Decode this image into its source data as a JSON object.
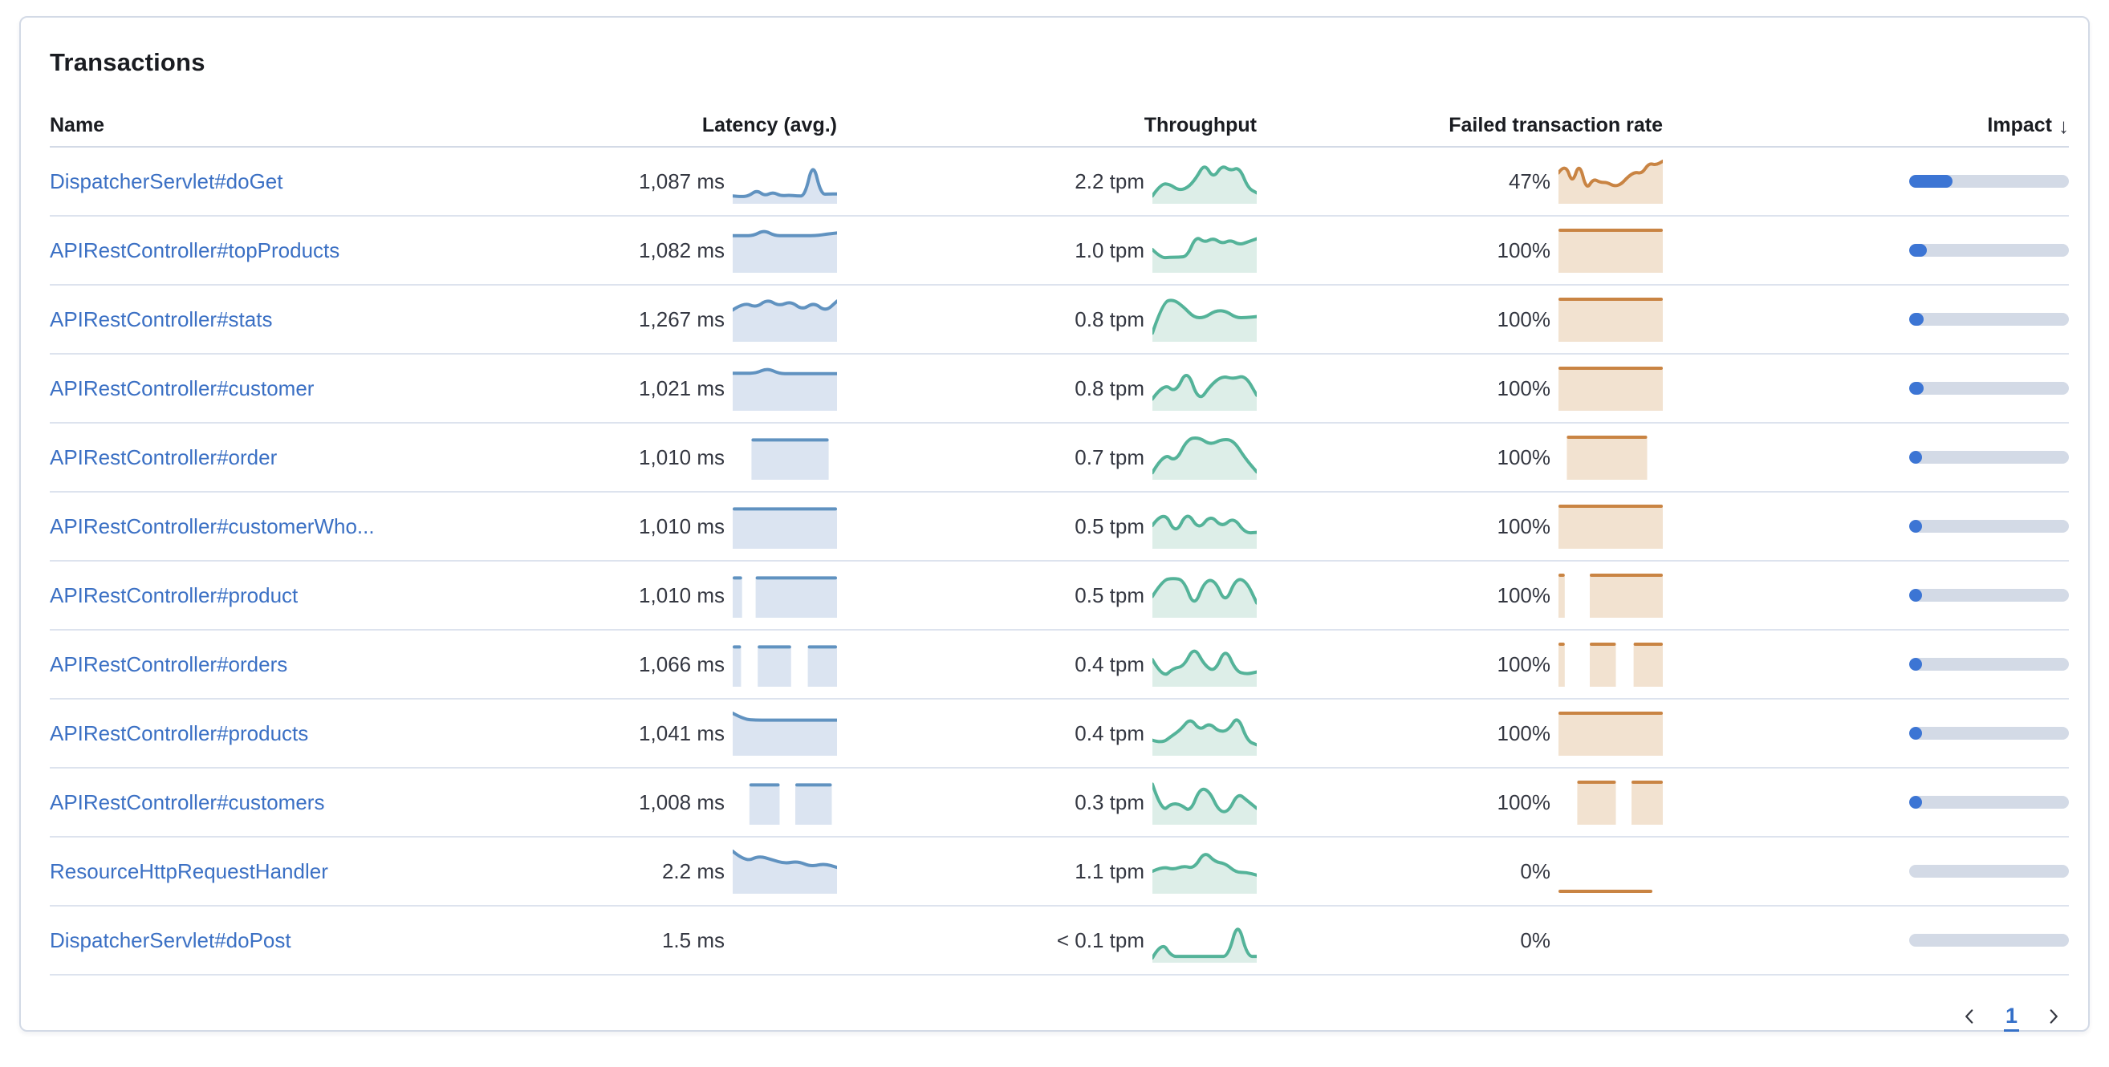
{
  "panel": {
    "title": "Transactions"
  },
  "table": {
    "columns": {
      "name": "Name",
      "latency": "Latency (avg.)",
      "throughput": "Throughput",
      "failed_rate": "Failed transaction rate",
      "impact": "Impact"
    },
    "sort": {
      "column": "impact",
      "direction": "descending",
      "icon": "↓"
    },
    "rows": [
      {
        "name": "DispatcherServlet#doGet",
        "latency": "1,087 ms",
        "throughput": "2.2 tpm",
        "failed_rate": "47%",
        "impact_pct": 27,
        "latency_spark": {
          "kind": "area",
          "points": [
            0.1,
            0.08,
            0.1,
            0.25,
            0.1,
            0.2,
            0.1,
            0.12,
            0.1,
            0.1,
            1.0,
            0.14,
            0.15,
            0.15
          ]
        },
        "throughput_spark": {
          "kind": "area",
          "points": [
            0.1,
            0.42,
            0.4,
            0.25,
            0.3,
            0.55,
            0.95,
            0.55,
            0.9,
            0.75,
            0.85,
            0.3,
            0.18
          ]
        },
        "failed_spark": {
          "kind": "area",
          "points": [
            0.7,
            0.95,
            0.4,
            0.98,
            0.25,
            0.55,
            0.45,
            0.45,
            0.35,
            0.4,
            0.6,
            0.72,
            0.68,
            0.95,
            0.9,
            1.0
          ]
        }
      },
      {
        "name": "APIRestController#topProducts",
        "latency": "1,082 ms",
        "throughput": "1.0 tpm",
        "failed_rate": "100%",
        "impact_pct": 11,
        "latency_spark": {
          "kind": "area",
          "points": [
            0.86,
            0.86,
            0.86,
            1.0,
            0.86,
            0.86,
            0.86,
            0.86,
            0.86,
            0.9,
            0.93
          ]
        },
        "throughput_spark": {
          "kind": "area",
          "points": [
            0.5,
            0.28,
            0.3,
            0.3,
            0.32,
            0.85,
            0.68,
            0.8,
            0.65,
            0.75,
            0.62,
            0.7,
            0.78
          ]
        },
        "failed_spark": {
          "kind": "blocks",
          "top": 1.0,
          "blocks": [
            [
              0,
              1
            ]
          ]
        }
      },
      {
        "name": "APIRestController#stats",
        "latency": "1,267 ms",
        "throughput": "0.8 tpm",
        "failed_rate": "100%",
        "impact_pct": 9,
        "latency_spark": {
          "kind": "area",
          "points": [
            0.72,
            0.92,
            0.78,
            1.0,
            0.82,
            0.95,
            0.72,
            0.92,
            0.68,
            0.95
          ]
        },
        "throughput_spark": {
          "kind": "area",
          "points": [
            0.12,
            0.92,
            1.0,
            0.8,
            0.52,
            0.52,
            0.7,
            0.7,
            0.52,
            0.52,
            0.55
          ]
        },
        "failed_spark": {
          "kind": "blocks",
          "top": 1.0,
          "blocks": [
            [
              0,
              1
            ]
          ]
        }
      },
      {
        "name": "APIRestController#customer",
        "latency": "1,021 ms",
        "throughput": "0.8 tpm",
        "failed_rate": "100%",
        "impact_pct": 9,
        "latency_spark": {
          "kind": "area",
          "points": [
            0.87,
            0.87,
            0.87,
            1.0,
            0.86,
            0.86,
            0.86,
            0.86,
            0.86,
            0.86
          ]
        },
        "throughput_spark": {
          "kind": "area",
          "points": [
            0.2,
            0.62,
            0.35,
            1.0,
            0.12,
            0.55,
            0.8,
            0.72,
            0.82,
            0.3
          ]
        },
        "failed_spark": {
          "kind": "blocks",
          "top": 1.0,
          "blocks": [
            [
              0,
              1
            ]
          ]
        }
      },
      {
        "name": "APIRestController#order",
        "latency": "1,010 ms",
        "throughput": "0.7 tpm",
        "failed_rate": "100%",
        "impact_pct": 8,
        "latency_spark": {
          "kind": "blocks",
          "top": 0.93,
          "blocks": [
            [
              0.18,
              0.92
            ]
          ]
        },
        "throughput_spark": {
          "kind": "area",
          "points": [
            0.08,
            0.6,
            0.35,
            0.95,
            1.0,
            0.8,
            0.95,
            0.92,
            0.45,
            0.1
          ]
        },
        "failed_spark": {
          "kind": "blocks",
          "top": 1.0,
          "blocks": [
            [
              0.08,
              0.85
            ]
          ]
        }
      },
      {
        "name": "APIRestController#customerWho...",
        "latency": "1,010 ms",
        "throughput": "0.5 tpm",
        "failed_rate": "100%",
        "impact_pct": 7,
        "latency_spark": {
          "kind": "blocks",
          "top": 0.93,
          "blocks": [
            [
              0,
              1
            ]
          ]
        },
        "throughput_spark": {
          "kind": "area",
          "points": [
            0.5,
            0.92,
            0.25,
            0.88,
            0.38,
            0.78,
            0.45,
            0.72,
            0.3,
            0.32
          ]
        },
        "failed_spark": {
          "kind": "blocks",
          "top": 1.0,
          "blocks": [
            [
              0,
              1
            ]
          ]
        }
      },
      {
        "name": "APIRestController#product",
        "latency": "1,010 ms",
        "throughput": "0.5 tpm",
        "failed_rate": "100%",
        "impact_pct": 6,
        "latency_spark": {
          "kind": "blocks",
          "top": 0.93,
          "blocks": [
            [
              0,
              0.09
            ],
            [
              0.22,
              1
            ]
          ]
        },
        "throughput_spark": {
          "kind": "area",
          "points": [
            0.45,
            0.88,
            0.92,
            0.88,
            0.15,
            0.85,
            0.88,
            0.25,
            0.92,
            0.85,
            0.28
          ]
        },
        "failed_spark": {
          "kind": "blocks",
          "top": 1.0,
          "blocks": [
            [
              0,
              0.06
            ],
            [
              0.3,
              1
            ]
          ]
        }
      },
      {
        "name": "APIRestController#orders",
        "latency": "1,066 ms",
        "throughput": "0.4 tpm",
        "failed_rate": "100%",
        "impact_pct": 5,
        "latency_spark": {
          "kind": "blocks",
          "top": 0.93,
          "blocks": [
            [
              0,
              0.08
            ],
            [
              0.24,
              0.56
            ],
            [
              0.72,
              1
            ]
          ]
        },
        "throughput_spark": {
          "kind": "area",
          "points": [
            0.6,
            0.12,
            0.38,
            0.42,
            0.95,
            0.45,
            0.28,
            0.92,
            0.3,
            0.22,
            0.28
          ]
        },
        "failed_spark": {
          "kind": "blocks",
          "top": 1.0,
          "blocks": [
            [
              0,
              0.06
            ],
            [
              0.3,
              0.55
            ],
            [
              0.72,
              1
            ]
          ]
        }
      },
      {
        "name": "APIRestController#products",
        "latency": "1,041 ms",
        "throughput": "0.4 tpm",
        "failed_rate": "100%",
        "impact_pct": 5,
        "latency_spark": {
          "kind": "area",
          "points": [
            1.0,
            0.84,
            0.82,
            0.82,
            0.82,
            0.82,
            0.82,
            0.82,
            0.82,
            0.82
          ]
        },
        "throughput_spark": {
          "kind": "area",
          "points": [
            0.3,
            0.22,
            0.4,
            0.58,
            0.88,
            0.55,
            0.75,
            0.52,
            0.55,
            0.95,
            0.28,
            0.18
          ]
        },
        "failed_spark": {
          "kind": "blocks",
          "top": 1.0,
          "blocks": [
            [
              0,
              1
            ]
          ]
        }
      },
      {
        "name": "APIRestController#customers",
        "latency": "1,008 ms",
        "throughput": "0.3 tpm",
        "failed_rate": "100%",
        "impact_pct": 4,
        "latency_spark": {
          "kind": "blocks",
          "top": 0.93,
          "blocks": [
            [
              0.16,
              0.45
            ],
            [
              0.6,
              0.95
            ]
          ]
        },
        "throughput_spark": {
          "kind": "area",
          "points": [
            0.95,
            0.22,
            0.45,
            0.42,
            0.22,
            0.85,
            0.78,
            0.25,
            0.22,
            0.72,
            0.52,
            0.32
          ]
        },
        "failed_spark": {
          "kind": "blocks",
          "top": 1.0,
          "blocks": [
            [
              0.18,
              0.55
            ],
            [
              0.7,
              1
            ]
          ]
        }
      },
      {
        "name": "ResourceHttpRequestHandler",
        "latency": "2.2 ms",
        "throughput": "1.1 tpm",
        "failed_rate": "0%",
        "impact_pct": 0,
        "latency_spark": {
          "kind": "area",
          "points": [
            1.0,
            0.72,
            0.88,
            0.78,
            0.68,
            0.74,
            0.6,
            0.68,
            0.58
          ]
        },
        "throughput_spark": {
          "kind": "area",
          "points": [
            0.48,
            0.6,
            0.52,
            0.62,
            0.55,
            1.0,
            0.72,
            0.68,
            0.45,
            0.45,
            0.38
          ]
        },
        "failed_spark": {
          "kind": "flatline",
          "blocks": [
            [
              0.0,
              0.9
            ]
          ]
        }
      },
      {
        "name": "DispatcherServlet#doPost",
        "latency": "1.5 ms",
        "throughput": "< 0.1 tpm",
        "failed_rate": "0%",
        "impact_pct": 0,
        "latency_spark": null,
        "throughput_spark": {
          "kind": "area",
          "points": [
            0.02,
            0.45,
            0.06,
            0.06,
            0.06,
            0.06,
            0.06,
            0.06,
            0.06,
            1.0,
            0.06,
            0.06
          ]
        },
        "failed_spark": null
      }
    ]
  },
  "pagination": {
    "page": "1"
  },
  "colors": {
    "link": "#3b70c4",
    "latency_line": "#6092c0",
    "latency_fill": "#dbe4f1",
    "throughput_line": "#54b399",
    "throughput_fill": "#ddeee8",
    "failed_line": "#c98443",
    "failed_fill": "#f2e2d0",
    "impact_fill": "#3c75d4",
    "impact_track": "#d3dae6"
  }
}
